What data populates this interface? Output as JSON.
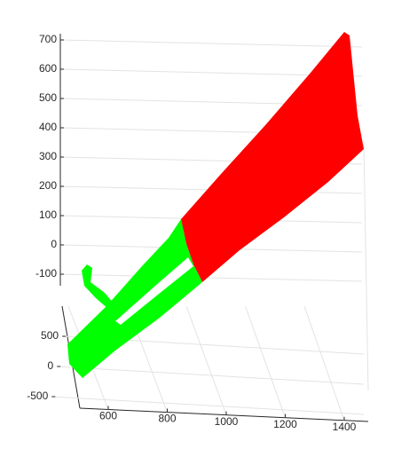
{
  "chart_data": {
    "type": "scatter3d",
    "xlim": [
      510,
      1480
    ],
    "xticks": [
      600,
      800,
      1000,
      1200,
      1400
    ],
    "ylim": [
      -650,
      950
    ],
    "yticks": [
      -500,
      0,
      500
    ],
    "zlim": [
      -130,
      720
    ],
    "zticks": [
      -100,
      0,
      100,
      200,
      300,
      400,
      500,
      600,
      700
    ],
    "grid": true,
    "clouds": [
      {
        "color": "#ff0000"
      },
      {
        "color": "#00ff00"
      }
    ]
  }
}
